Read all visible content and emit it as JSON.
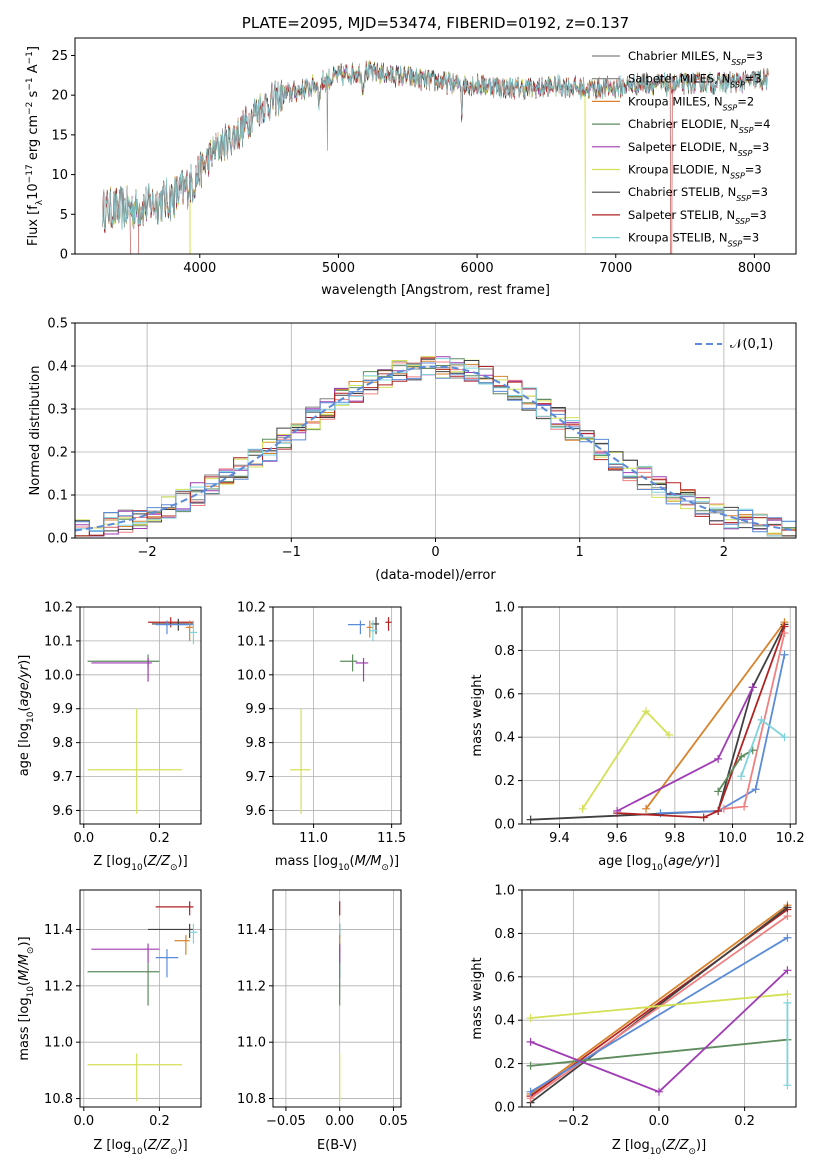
{
  "chart_data": [
    {
      "id": "spectrum",
      "type": "line",
      "title": "PLATE=2095, MJD=53474, FIBERID=0192, z=0.137",
      "xlabel": "wavelength [Angstrom, rest frame]",
      "ylabel": "Flux [f_λ 10^-17 erg cm^-2 s^-1 A^-1]",
      "xlim": [
        3100,
        8300
      ],
      "ylim": [
        0,
        27.2
      ],
      "xticks": [
        4000,
        5000,
        6000,
        7000,
        8000
      ],
      "yticks": [
        0,
        5,
        10,
        15,
        20,
        25
      ],
      "legend_position": "upper-right",
      "series": [
        {
          "name": "Chabrier MILES, N_SSP=3",
          "color": "#808080"
        },
        {
          "name": "Salpeter MILES, N_SSP=3",
          "color": "#808080"
        },
        {
          "name": "Kroupa MILES, N_SSP=2",
          "color": "#d9822b"
        },
        {
          "name": "Chabrier ELODIE, N_SSP=4",
          "color": "#5e8c5e"
        },
        {
          "name": "Salpeter ELODIE, N_SSP=3",
          "color": "#a03cb4"
        },
        {
          "name": "Kroupa ELODIE, N_SSP=3",
          "color": "#d4e157"
        },
        {
          "name": "Chabrier STELIB, N_SSP=3",
          "color": "#404040"
        },
        {
          "name": "Salpeter STELIB, N_SSP=3",
          "color": "#b22222"
        },
        {
          "name": "Kroupa STELIB, N_SSP=3",
          "color": "#7fd4dc"
        }
      ],
      "continuum": {
        "x": [
          3300,
          3500,
          3600,
          3800,
          3950,
          4100,
          4300,
          4400,
          4600,
          4800,
          5000,
          5200,
          5400,
          5600,
          5800,
          6000,
          6200,
          6400,
          6600,
          6800,
          7000,
          7200,
          7400,
          7600,
          7800,
          8000,
          8100
        ],
        "y": [
          5.5,
          5.8,
          6,
          7,
          9,
          13,
          15.5,
          18,
          20,
          21,
          22.5,
          23,
          22.5,
          22,
          21.5,
          21.3,
          21,
          20.8,
          21.2,
          20.8,
          21,
          21.5,
          21.3,
          21.5,
          21.6,
          21.8,
          22
        ]
      }
    },
    {
      "id": "residuals",
      "type": "histogram",
      "xlabel": "(data-model)/error",
      "ylabel": "Normed distribution",
      "xlim": [
        -2.5,
        2.5
      ],
      "ylim": [
        0,
        0.5
      ],
      "xticks": [
        -2,
        -1,
        0,
        1,
        2
      ],
      "yticks": [
        0.0,
        0.1,
        0.2,
        0.3,
        0.4,
        0.5
      ],
      "legend": "𝒩(0,1)",
      "bin_width": 0.1,
      "normal": {
        "mean": 0,
        "sigma": 1,
        "color": "#5b8bd9"
      },
      "hist_colors": [
        "#808080",
        "#f08080",
        "#d9822b",
        "#5e8c5e",
        "#a03cb4",
        "#d4e157",
        "#404040",
        "#b22222",
        "#7fd4dc",
        "#5b8bd9"
      ]
    },
    {
      "id": "age_vs_Z",
      "type": "errorbar",
      "xlabel": "Z [log10(Z/Z⊙)]",
      "ylabel": "age [log10(age/yr)]",
      "xlim": [
        -0.01,
        0.31
      ],
      "ylim": [
        9.56,
        10.2
      ],
      "xticks": [
        0.0,
        0.2
      ],
      "yticks": [
        9.6,
        9.7,
        9.8,
        9.9,
        10.0,
        10.1,
        10.2
      ],
      "points": [
        {
          "x": 0.23,
          "y": 10.155,
          "x_lo": 0.17,
          "x_hi": 0.29,
          "y_lo": 10.14,
          "y_hi": 10.17,
          "color": "#b22222"
        },
        {
          "x": 0.25,
          "y": 10.15,
          "x_lo": 0.18,
          "x_hi": 0.29,
          "y_lo": 10.13,
          "y_hi": 10.165,
          "color": "#404040"
        },
        {
          "x": 0.22,
          "y": 10.148,
          "x_lo": 0.19,
          "x_hi": 0.29,
          "y_lo": 10.12,
          "y_hi": 10.16,
          "color": "#5b8bd9"
        },
        {
          "x": 0.28,
          "y": 10.14,
          "x_lo": 0.27,
          "x_hi": 0.29,
          "y_lo": 10.1,
          "y_hi": 10.16,
          "color": "#d9822b"
        },
        {
          "x": 0.29,
          "y": 10.125,
          "x_lo": 0.28,
          "x_hi": 0.3,
          "y_lo": 10.09,
          "y_hi": 10.16,
          "color": "#7fd4dc"
        },
        {
          "x": 0.17,
          "y": 10.04,
          "x_lo": 0.01,
          "x_hi": 0.2,
          "y_lo": 10.02,
          "y_hi": 10.06,
          "color": "#5e8c5e"
        },
        {
          "x": 0.17,
          "y": 10.035,
          "x_lo": 0.02,
          "x_hi": 0.18,
          "y_lo": 9.98,
          "y_hi": 10.05,
          "color": "#a03cb4"
        },
        {
          "x": 0.14,
          "y": 9.72,
          "x_lo": 0.01,
          "x_hi": 0.26,
          "y_lo": 9.59,
          "y_hi": 9.9,
          "color": "#d4e157"
        }
      ]
    },
    {
      "id": "age_vs_mass",
      "type": "errorbar",
      "xlabel": "mass [log10(M/M⊙)]",
      "ylabel": "",
      "xlim": [
        10.74,
        11.56
      ],
      "ylim": [
        9.56,
        10.2
      ],
      "xticks": [
        11.0,
        11.5
      ],
      "yticks": [
        9.6,
        9.7,
        9.8,
        9.9,
        10.0,
        10.1,
        10.2
      ],
      "points": [
        {
          "x": 11.48,
          "y": 10.155,
          "x_lo": 11.46,
          "x_hi": 11.5,
          "y_lo": 10.13,
          "y_hi": 10.17,
          "color": "#b22222"
        },
        {
          "x": 11.4,
          "y": 10.15,
          "x_lo": 11.37,
          "x_hi": 11.42,
          "y_lo": 10.12,
          "y_hi": 10.17,
          "color": "#404040"
        },
        {
          "x": 11.3,
          "y": 10.148,
          "x_lo": 11.22,
          "x_hi": 11.33,
          "y_lo": 10.12,
          "y_hi": 10.16,
          "color": "#5b8bd9"
        },
        {
          "x": 11.36,
          "y": 10.14,
          "x_lo": 11.34,
          "x_hi": 11.38,
          "y_lo": 10.11,
          "y_hi": 10.16,
          "color": "#d9822b"
        },
        {
          "x": 11.38,
          "y": 10.13,
          "x_lo": 11.36,
          "x_hi": 11.41,
          "y_lo": 10.1,
          "y_hi": 10.16,
          "color": "#7fd4dc"
        },
        {
          "x": 11.25,
          "y": 10.04,
          "x_lo": 11.17,
          "x_hi": 11.28,
          "y_lo": 10.01,
          "y_hi": 10.06,
          "color": "#5e8c5e"
        },
        {
          "x": 11.32,
          "y": 10.035,
          "x_lo": 11.27,
          "x_hi": 11.35,
          "y_lo": 9.98,
          "y_hi": 10.05,
          "color": "#a03cb4"
        },
        {
          "x": 10.92,
          "y": 9.72,
          "x_lo": 10.85,
          "x_hi": 10.98,
          "y_lo": 9.59,
          "y_hi": 9.9,
          "color": "#d4e157"
        }
      ]
    },
    {
      "id": "mass_weight_vs_age",
      "type": "line",
      "xlabel": "age [log10(age/yr)]",
      "ylabel": "mass weight",
      "xlim": [
        9.27,
        10.22
      ],
      "ylim": [
        0,
        1.0
      ],
      "xticks": [
        9.4,
        9.6,
        9.8,
        10.0,
        10.2
      ],
      "yticks": [
        0.0,
        0.2,
        0.4,
        0.6,
        0.8,
        1.0
      ],
      "series": [
        {
          "color": "#404040",
          "x": [
            9.3,
            9.95,
            10.07,
            10.18
          ],
          "y": [
            0.02,
            0.06,
            0.63,
            0.92
          ]
        },
        {
          "color": "#d4e157",
          "x": [
            9.48,
            9.7,
            9.78
          ],
          "y": [
            0.07,
            0.52,
            0.41
          ]
        },
        {
          "color": "#d9822b",
          "x": [
            9.7,
            10.18
          ],
          "y": [
            0.07,
            0.93
          ]
        },
        {
          "color": "#5b8bd9",
          "x": [
            9.75,
            9.95,
            10.08,
            10.18
          ],
          "y": [
            0.05,
            0.06,
            0.16,
            0.78
          ]
        },
        {
          "color": "#b22222",
          "x": [
            9.6,
            9.9,
            9.95,
            10.18
          ],
          "y": [
            0.05,
            0.03,
            0.06,
            0.91
          ]
        },
        {
          "color": "#a03cb4",
          "x": [
            9.6,
            9.95,
            10.07
          ],
          "y": [
            0.06,
            0.3,
            0.63
          ]
        },
        {
          "color": "#f08080",
          "x": [
            9.97,
            10.04,
            10.18
          ],
          "y": [
            0.07,
            0.08,
            0.88
          ]
        },
        {
          "color": "#5e8c5e",
          "x": [
            9.95,
            10.03,
            10.07
          ],
          "y": [
            0.15,
            0.31,
            0.34
          ]
        },
        {
          "color": "#7fd4dc",
          "x": [
            10.03,
            10.1,
            10.18
          ],
          "y": [
            0.22,
            0.48,
            0.4
          ]
        }
      ]
    },
    {
      "id": "mass_vs_Z",
      "type": "errorbar",
      "xlabel": "Z [log10(Z/Z⊙)]",
      "ylabel": "mass [log10(M/M⊙)]",
      "xlim": [
        -0.01,
        0.31
      ],
      "ylim": [
        10.77,
        11.54
      ],
      "xticks": [
        0.0,
        0.2
      ],
      "yticks": [
        10.8,
        11.0,
        11.2,
        11.4
      ],
      "points": [
        {
          "x": 0.28,
          "y": 11.48,
          "x_lo": 0.19,
          "x_hi": 0.29,
          "y_lo": 11.45,
          "y_hi": 11.5,
          "color": "#b22222"
        },
        {
          "x": 0.28,
          "y": 11.4,
          "x_lo": 0.17,
          "x_hi": 0.29,
          "y_lo": 11.37,
          "y_hi": 11.42,
          "color": "#404040"
        },
        {
          "x": 0.29,
          "y": 11.39,
          "x_lo": 0.28,
          "x_hi": 0.3,
          "y_lo": 11.35,
          "y_hi": 11.42,
          "color": "#7fd4dc"
        },
        {
          "x": 0.27,
          "y": 11.36,
          "x_lo": 0.24,
          "x_hi": 0.28,
          "y_lo": 11.31,
          "y_hi": 11.38,
          "color": "#d9822b"
        },
        {
          "x": 0.22,
          "y": 11.3,
          "x_lo": 0.19,
          "x_hi": 0.25,
          "y_lo": 11.23,
          "y_hi": 11.33,
          "color": "#5b8bd9"
        },
        {
          "x": 0.17,
          "y": 11.33,
          "x_lo": 0.02,
          "x_hi": 0.2,
          "y_lo": 11.28,
          "y_hi": 11.35,
          "color": "#a03cb4"
        },
        {
          "x": 0.17,
          "y": 11.25,
          "x_lo": 0.01,
          "x_hi": 0.2,
          "y_lo": 11.13,
          "y_hi": 11.28,
          "color": "#5e8c5e"
        },
        {
          "x": 0.14,
          "y": 10.92,
          "x_lo": 0.01,
          "x_hi": 0.26,
          "y_lo": 10.79,
          "y_hi": 10.96,
          "color": "#d4e157"
        }
      ]
    },
    {
      "id": "mass_vs_EBV",
      "type": "errorbar",
      "xlabel": "E(B-V)",
      "ylabel": "",
      "xlim": [
        -0.062,
        0.057
      ],
      "ylim": [
        10.77,
        11.54
      ],
      "xticks": [
        -0.05,
        0.0,
        0.05
      ],
      "yticks": [
        10.8,
        11.0,
        11.2,
        11.4
      ],
      "points": [
        {
          "x": 0.0,
          "y": 11.48,
          "x_lo": 0.0,
          "x_hi": 0.0,
          "y_lo": 11.45,
          "y_hi": 11.5,
          "color": "#b22222"
        },
        {
          "x": 0.0,
          "y": 11.4,
          "x_lo": 0.0,
          "x_hi": 0.0,
          "y_lo": 11.37,
          "y_hi": 11.42,
          "color": "#404040"
        },
        {
          "x": 0.0,
          "y": 11.39,
          "x_lo": 0.0,
          "x_hi": 0.0,
          "y_lo": 11.35,
          "y_hi": 11.42,
          "color": "#7fd4dc"
        },
        {
          "x": 0.0,
          "y": 11.36,
          "x_lo": 0.0,
          "x_hi": 0.0,
          "y_lo": 11.31,
          "y_hi": 11.38,
          "color": "#d9822b"
        },
        {
          "x": 0.0,
          "y": 11.3,
          "x_lo": 0.0,
          "x_hi": 0.0,
          "y_lo": 11.23,
          "y_hi": 11.33,
          "color": "#5b8bd9"
        },
        {
          "x": 0.0,
          "y": 11.33,
          "x_lo": 0.0,
          "x_hi": 0.0,
          "y_lo": 11.28,
          "y_hi": 11.35,
          "color": "#a03cb4"
        },
        {
          "x": 0.0,
          "y": 11.25,
          "x_lo": 0.0,
          "x_hi": 0.0,
          "y_lo": 11.13,
          "y_hi": 11.28,
          "color": "#5e8c5e"
        },
        {
          "x": 0.0,
          "y": 10.92,
          "x_lo": 0.0,
          "x_hi": 0.0,
          "y_lo": 10.79,
          "y_hi": 10.96,
          "color": "#d4e157"
        }
      ]
    },
    {
      "id": "mass_weight_vs_Z",
      "type": "line",
      "xlabel": "Z [log10(Z/Z⊙)]",
      "ylabel": "mass weight",
      "xlim": [
        -0.32,
        0.32
      ],
      "ylim": [
        0,
        1.0
      ],
      "xticks": [
        -0.2,
        0.0,
        0.2
      ],
      "yticks": [
        0.0,
        0.2,
        0.4,
        0.6,
        0.8,
        1.0
      ],
      "series": [
        {
          "color": "#d9822b",
          "x": [
            -0.3,
            0.3
          ],
          "y": [
            0.06,
            0.93
          ]
        },
        {
          "color": "#b22222",
          "x": [
            -0.3,
            0.3
          ],
          "y": [
            0.05,
            0.91
          ]
        },
        {
          "color": "#404040",
          "x": [
            -0.3,
            0.3
          ],
          "y": [
            0.02,
            0.92
          ]
        },
        {
          "color": "#f08080",
          "x": [
            -0.3,
            0.3
          ],
          "y": [
            0.04,
            0.88
          ]
        },
        {
          "color": "#5b8bd9",
          "x": [
            -0.3,
            0.3
          ],
          "y": [
            0.07,
            0.78
          ]
        },
        {
          "color": "#d4e157",
          "x": [
            -0.3,
            0.3
          ],
          "y": [
            0.41,
            0.52
          ]
        },
        {
          "color": "#5e8c5e",
          "x": [
            -0.3,
            0.3
          ],
          "y": [
            0.19,
            0.31
          ]
        },
        {
          "color": "#a03cb4",
          "x": [
            -0.3,
            0.0,
            0.3
          ],
          "y": [
            0.3,
            0.07,
            0.63
          ]
        },
        {
          "color": "#7fd4dc",
          "x": [
            0.3,
            0.3
          ],
          "y": [
            0.1,
            0.48
          ]
        }
      ]
    }
  ]
}
